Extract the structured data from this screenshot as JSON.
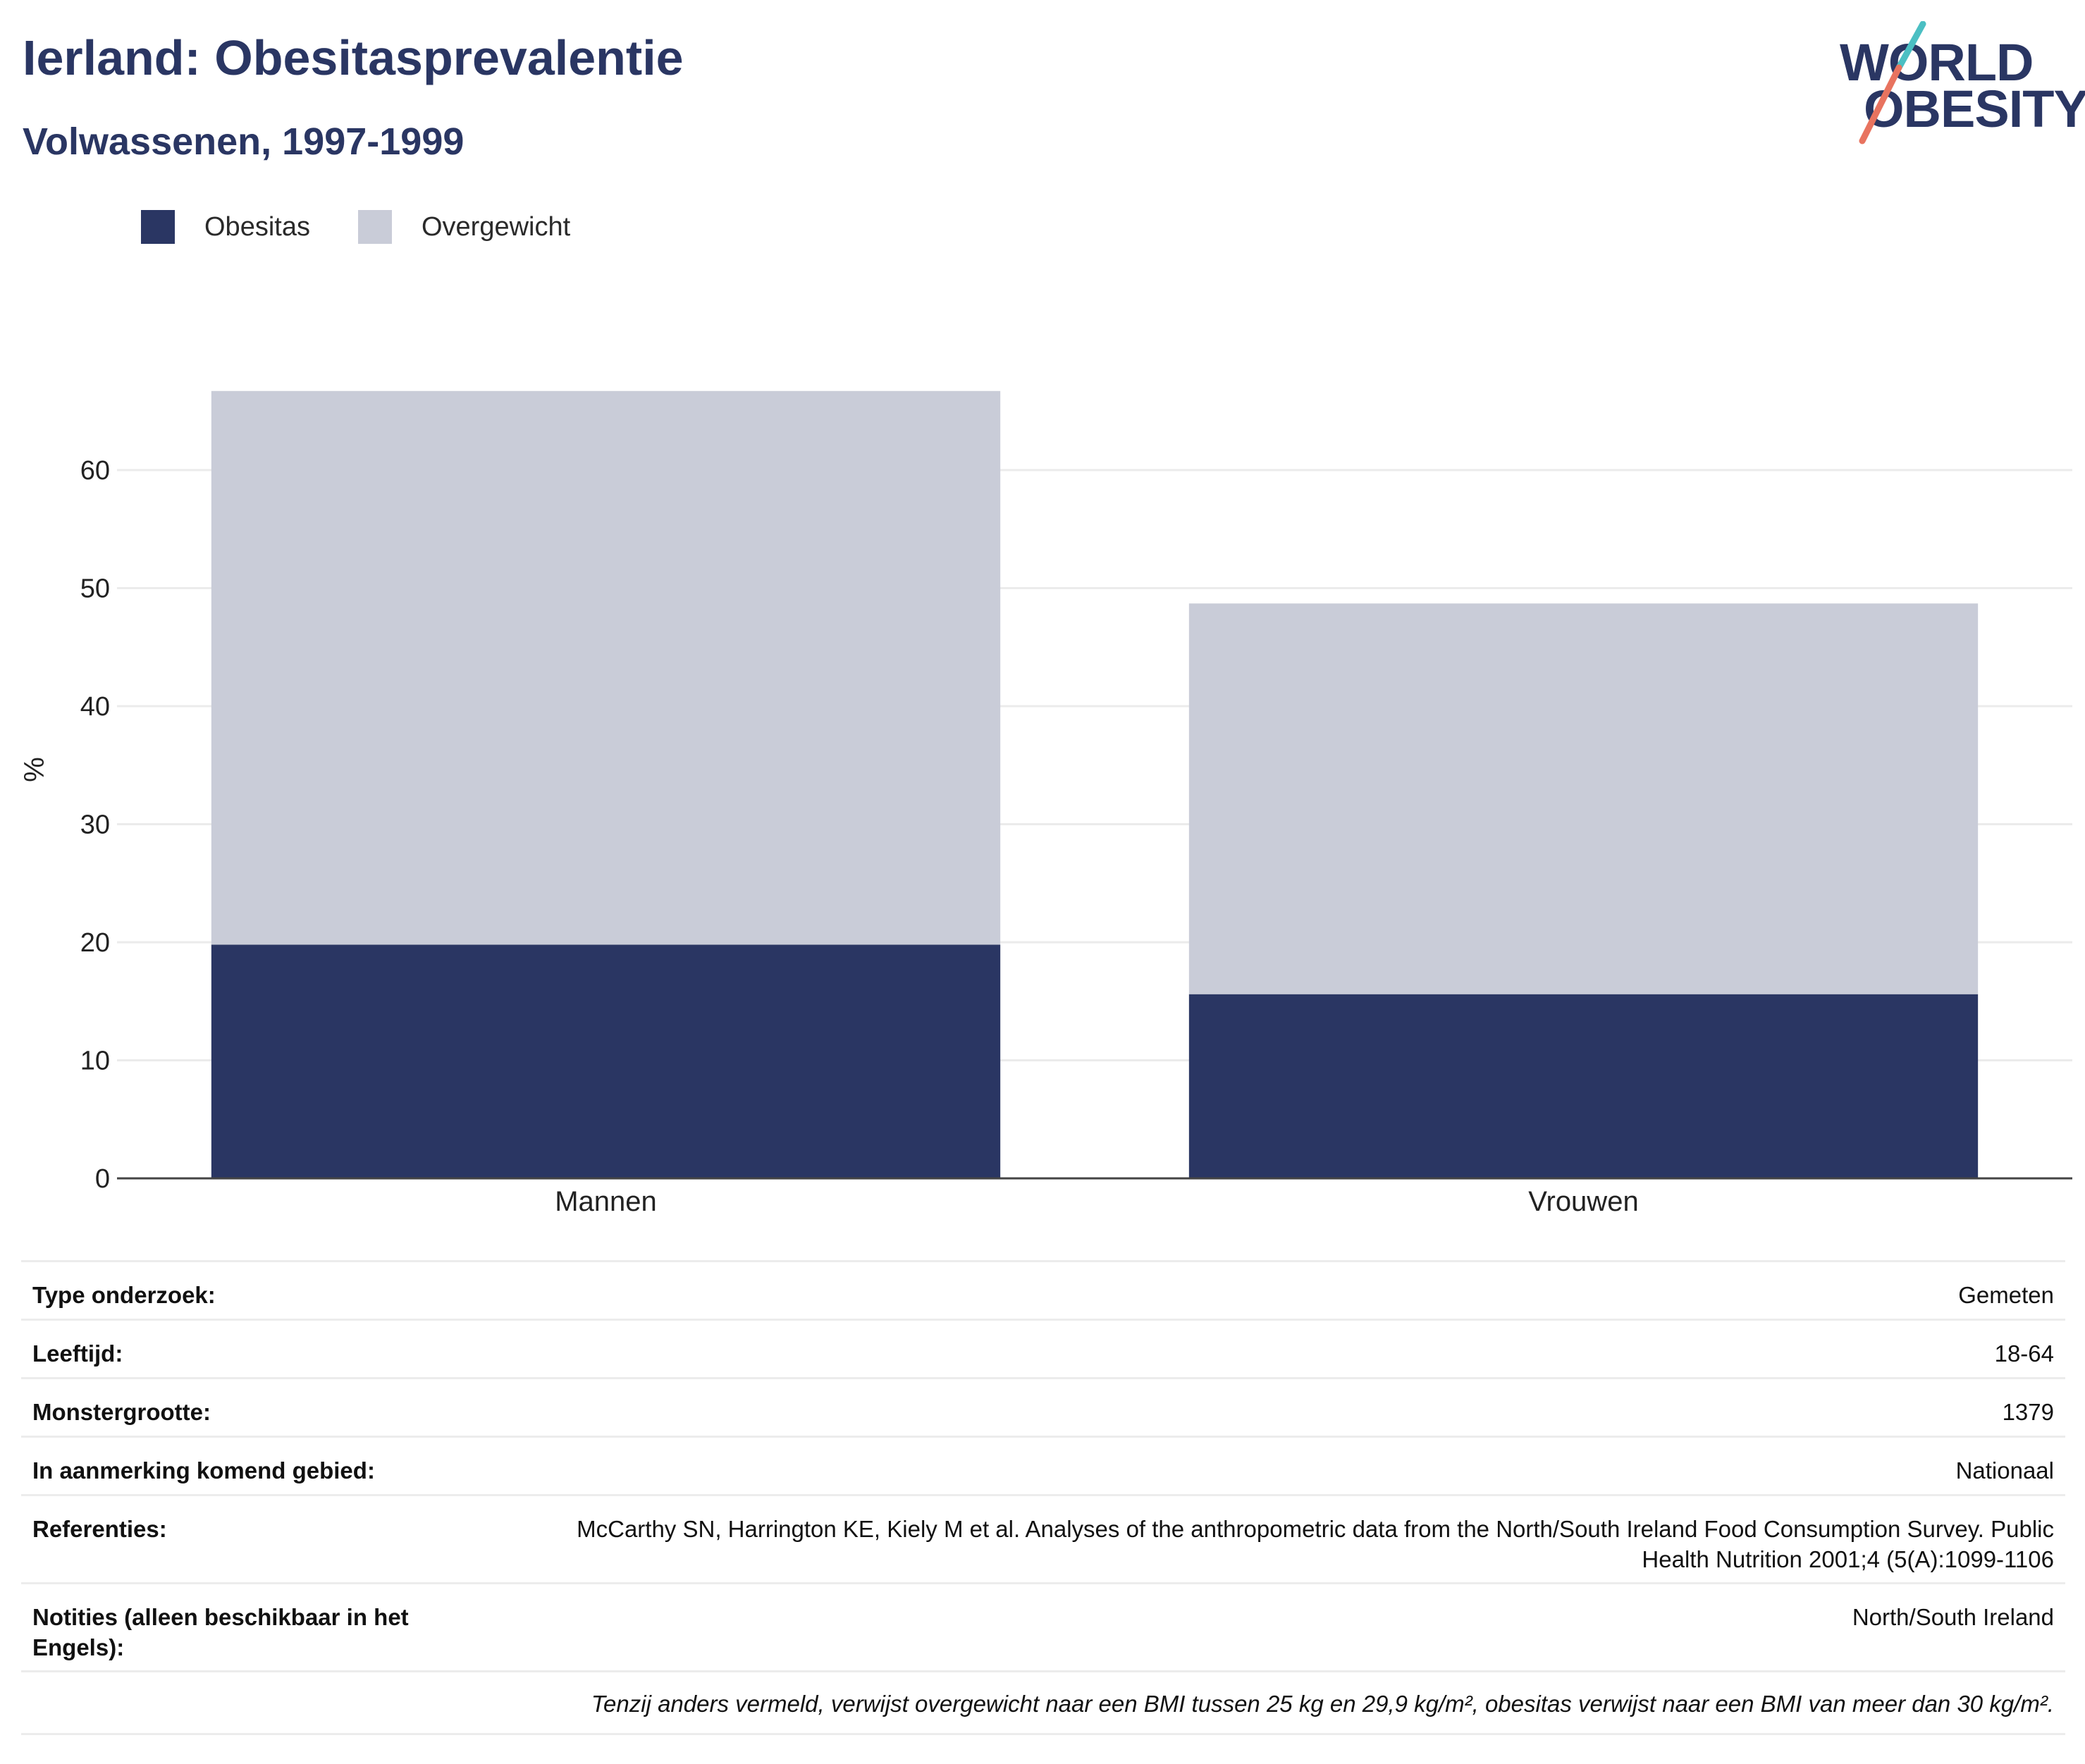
{
  "header": {
    "title": "Ierland: Obesitasprevalentie",
    "subtitle": "Volwassenen, 1997-1999"
  },
  "logo": {
    "line1": "WORLD",
    "line2": "OBESITY",
    "colors": {
      "text": "#2a3663",
      "slash_top": "#4bbfc3",
      "slash_bottom": "#e8735f"
    }
  },
  "legend": [
    {
      "label": "Obesitas",
      "color": "#2a3663"
    },
    {
      "label": "Overgewicht",
      "color": "#c9ccd8"
    }
  ],
  "chart_data": {
    "type": "bar",
    "stacked": true,
    "categories": [
      "Mannen",
      "Vrouwen"
    ],
    "series": [
      {
        "name": "Obesitas",
        "values": [
          19.8,
          15.6
        ],
        "color": "#2a3663"
      },
      {
        "name": "Overgewicht",
        "values": [
          46.9,
          33.1
        ],
        "color": "#c9ccd8"
      }
    ],
    "ylabel": "%",
    "ylim": [
      0,
      70
    ],
    "yticks": [
      0,
      10,
      20,
      30,
      40,
      50,
      60
    ],
    "grid": true,
    "legend_position": "top-left"
  },
  "info": {
    "rows": [
      {
        "key": "Type onderzoek:",
        "value": "Gemeten"
      },
      {
        "key": "Leeftijd:",
        "value": "18-64"
      },
      {
        "key": "Monstergrootte:",
        "value": "1379"
      },
      {
        "key": "In aanmerking komend gebied:",
        "value": "Nationaal"
      },
      {
        "key": "Referenties:",
        "value": "McCarthy SN, Harrington KE, Kiely M et al. Analyses of the anthropometric data from the North/South Ireland Food Consumption Survey. Public Health Nutrition 2001;4 (5(A):1099-1106"
      },
      {
        "key": "Notities (alleen beschikbaar in het Engels):",
        "value": "North/South Ireland"
      }
    ],
    "note": "Tenzij anders vermeld, verwijst overgewicht naar een BMI tussen 25 kg en 29,9 kg/m², obesitas verwijst naar een BMI van meer dan 30 kg/m²."
  }
}
